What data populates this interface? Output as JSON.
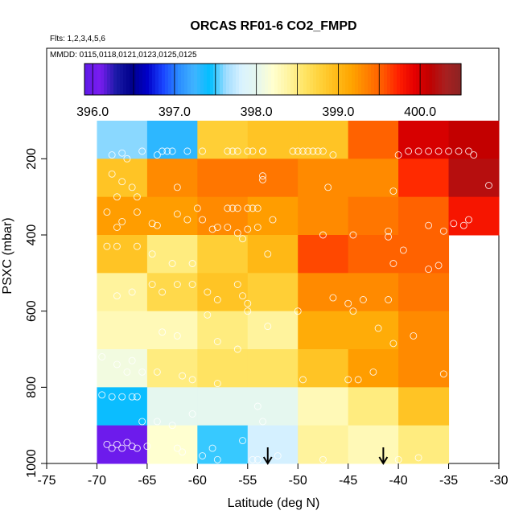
{
  "chart_data": {
    "type": "heatmap",
    "title": "ORCAS RF01-6 CO2_FMPD",
    "subtitle_flights": "Flts: 1,2,3,4,5,6",
    "subtitle_dates": "MMDD: 0115,0118,0121,0123,0125,0125",
    "xlabel": "Latitude (deg N)",
    "ylabel": "PSXC (mbar)",
    "xlim": [
      -75,
      -30
    ],
    "ylim": [
      1000,
      100
    ],
    "x_ticks": [
      -75,
      -70,
      -65,
      -60,
      -55,
      -50,
      -45,
      -40,
      -35,
      -30
    ],
    "x_tick_labels": [
      "-75",
      "-70",
      "-65",
      "-60",
      "-55",
      "-50",
      "-45",
      "-40",
      "-35",
      "-30"
    ],
    "y_ticks": [
      200,
      400,
      600,
      800,
      1000
    ],
    "y_tick_labels": [
      "200",
      "400",
      "600",
      "800",
      "1000"
    ],
    "lat_bins": [
      -70,
      -65,
      -60,
      -55,
      -50,
      -45,
      -40,
      -35,
      -30
    ],
    "pres_bins": [
      100,
      200,
      300,
      400,
      500,
      600,
      700,
      800,
      900,
      1000
    ],
    "cells": [
      [
        397.6,
        397.3,
        398.8,
        398.9,
        398.9,
        399.5,
        400.0,
        400.1
      ],
      [
        398.9,
        399.3,
        399.4,
        399.4,
        399.3,
        399.3,
        399.7,
        400.2
      ],
      [
        399.2,
        399.2,
        399.3,
        399.2,
        399.3,
        399.4,
        399.5,
        399.8
      ],
      [
        398.9,
        398.5,
        398.8,
        399.0,
        399.6,
        399.5,
        399.5,
        null
      ],
      [
        398.4,
        398.7,
        398.9,
        398.8,
        399.3,
        399.3,
        399.4,
        null
      ],
      [
        398.3,
        398.3,
        398.5,
        398.4,
        399.1,
        399.1,
        399.3,
        null
      ],
      [
        398.1,
        398.5,
        398.6,
        398.6,
        398.9,
        399.2,
        399.3,
        null
      ],
      [
        397.4,
        398.0,
        398.0,
        398.0,
        398.3,
        398.5,
        398.9,
        null
      ],
      [
        396.0,
        398.2,
        397.5,
        397.8,
        398.4,
        398.3,
        398.5,
        null
      ]
    ],
    "colorbar": {
      "min": 395.9,
      "max": 400.5,
      "ticks": [
        396.0,
        397.0,
        398.0,
        399.0,
        400.0
      ],
      "tick_labels": [
        "396.0",
        "397.0",
        "398.0",
        "399.0",
        "400.0"
      ],
      "colors": [
        "#5e1ae8",
        "#7a1cf0",
        "#1a1aa6",
        "#00008c",
        "#0000c8",
        "#1a44ff",
        "#2a8cff",
        "#40b4ff",
        "#00bfff",
        "#9fdcff",
        "#d9f2ff",
        "#e6f7ee",
        "#ffffd0",
        "#fff4a0",
        "#ffe566",
        "#ffd23a",
        "#ffbc1a",
        "#ffa500",
        "#ff8000",
        "#ff5a00",
        "#ff2000",
        "#e60000",
        "#c00000",
        "#a82020",
        "#8b2323"
      ]
    },
    "arrows_lat": [
      -53,
      -41.5
    ],
    "points": [
      [
        -68.5,
        190
      ],
      [
        -67.5,
        185
      ],
      [
        -67,
        200
      ],
      [
        -65.5,
        180
      ],
      [
        -64,
        190
      ],
      [
        -63.5,
        180
      ],
      [
        -63,
        180
      ],
      [
        -62.5,
        180
      ],
      [
        -61,
        180
      ],
      [
        -59.5,
        180
      ],
      [
        -57,
        180
      ],
      [
        -56.5,
        180
      ],
      [
        -56,
        180
      ],
      [
        -55,
        180
      ],
      [
        -54.5,
        180
      ],
      [
        -53.5,
        180
      ],
      [
        -53.5,
        180
      ],
      [
        -50.5,
        180
      ],
      [
        -50,
        180
      ],
      [
        -49.5,
        180
      ],
      [
        -49,
        180
      ],
      [
        -48.5,
        180
      ],
      [
        -48,
        180
      ],
      [
        -47.5,
        180
      ],
      [
        -46.5,
        190
      ],
      [
        -40,
        190
      ],
      [
        -39,
        180
      ],
      [
        -38,
        180
      ],
      [
        -37,
        180
      ],
      [
        -36,
        180
      ],
      [
        -35,
        180
      ],
      [
        -34,
        180
      ],
      [
        -33,
        180
      ],
      [
        -32.5,
        190
      ],
      [
        -68.5,
        240
      ],
      [
        -67.5,
        260
      ],
      [
        -66.5,
        275
      ],
      [
        -62,
        275
      ],
      [
        -53.5,
        245
      ],
      [
        -53.5,
        255
      ],
      [
        -47,
        275
      ],
      [
        -40.5,
        285
      ],
      [
        -31,
        270
      ],
      [
        -68,
        300
      ],
      [
        -66,
        300
      ],
      [
        -69,
        340
      ],
      [
        -67.5,
        365
      ],
      [
        -68,
        380
      ],
      [
        -66,
        340
      ],
      [
        -64.5,
        370
      ],
      [
        -64,
        375
      ],
      [
        -62,
        345
      ],
      [
        -61,
        360
      ],
      [
        -60,
        330
      ],
      [
        -59.5,
        360
      ],
      [
        -57,
        330
      ],
      [
        -56.5,
        330
      ],
      [
        -56,
        330
      ],
      [
        -55,
        330
      ],
      [
        -54.5,
        330
      ],
      [
        -54,
        330
      ],
      [
        -52.5,
        360
      ],
      [
        -58.5,
        385
      ],
      [
        -58,
        380
      ],
      [
        -57,
        380
      ],
      [
        -56,
        395
      ],
      [
        -55,
        385
      ],
      [
        -54,
        380
      ],
      [
        -55.5,
        410
      ],
      [
        -47.5,
        400
      ],
      [
        -44.5,
        400
      ],
      [
        -41,
        390
      ],
      [
        -37,
        375
      ],
      [
        -35.5,
        390
      ],
      [
        -34.5,
        370
      ],
      [
        -33.5,
        375
      ],
      [
        -33,
        360
      ],
      [
        -41,
        405
      ],
      [
        -69,
        430
      ],
      [
        -68,
        430
      ],
      [
        -66,
        430
      ],
      [
        -64.5,
        450
      ],
      [
        -62.5,
        475
      ],
      [
        -60.5,
        475
      ],
      [
        -53,
        450
      ],
      [
        -40.5,
        475
      ],
      [
        -39.5,
        440
      ],
      [
        -37,
        490
      ],
      [
        -36,
        480
      ],
      [
        -68,
        560
      ],
      [
        -66.5,
        550
      ],
      [
        -64.5,
        530
      ],
      [
        -63.5,
        550
      ],
      [
        -62,
        530
      ],
      [
        -60.5,
        530
      ],
      [
        -59,
        550
      ],
      [
        -58,
        570
      ],
      [
        -56,
        530
      ],
      [
        -55.5,
        560
      ],
      [
        -55,
        580
      ],
      [
        -46.5,
        565
      ],
      [
        -45,
        580
      ],
      [
        -43.5,
        570
      ],
      [
        -41,
        570
      ],
      [
        -34,
        570
      ],
      [
        -59,
        610
      ],
      [
        -55,
        600
      ],
      [
        -53,
        640
      ],
      [
        -50,
        600
      ],
      [
        -44.5,
        600
      ],
      [
        -42,
        645
      ],
      [
        -40.5,
        685
      ],
      [
        -38.5,
        665
      ],
      [
        -62,
        665
      ],
      [
        -63.5,
        655
      ],
      [
        -58,
        680
      ],
      [
        -56,
        700
      ],
      [
        -69.5,
        720
      ],
      [
        -68,
        740
      ],
      [
        -66.5,
        730
      ],
      [
        -65.5,
        760
      ],
      [
        -67,
        760
      ],
      [
        -64,
        760
      ],
      [
        -61.5,
        770
      ],
      [
        -60.5,
        780
      ],
      [
        -58,
        790
      ],
      [
        -49.5,
        780
      ],
      [
        -45,
        780
      ],
      [
        -44,
        780
      ],
      [
        -42.5,
        760
      ],
      [
        -35.5,
        765
      ],
      [
        -69.5,
        820
      ],
      [
        -68.5,
        825
      ],
      [
        -67.5,
        825
      ],
      [
        -66.5,
        825
      ],
      [
        -66,
        825
      ],
      [
        -65.5,
        890
      ],
      [
        -64,
        890
      ],
      [
        -62.5,
        900
      ],
      [
        -60.5,
        870
      ],
      [
        -54,
        850
      ],
      [
        -53.5,
        890
      ],
      [
        -69,
        950
      ],
      [
        -68.5,
        960
      ],
      [
        -68,
        950
      ],
      [
        -67.5,
        960
      ],
      [
        -67,
        945
      ],
      [
        -66.5,
        955
      ],
      [
        -66,
        960
      ],
      [
        -65,
        955
      ],
      [
        -62,
        960
      ],
      [
        -61.5,
        970
      ],
      [
        -59.5,
        980
      ],
      [
        -58.5,
        960
      ],
      [
        -58,
        990
      ],
      [
        -55.5,
        940
      ],
      [
        -54.5,
        990
      ],
      [
        -54,
        990
      ],
      [
        -52,
        980
      ],
      [
        -47.5,
        990
      ],
      [
        -40,
        990
      ],
      [
        -38,
        985
      ]
    ]
  }
}
